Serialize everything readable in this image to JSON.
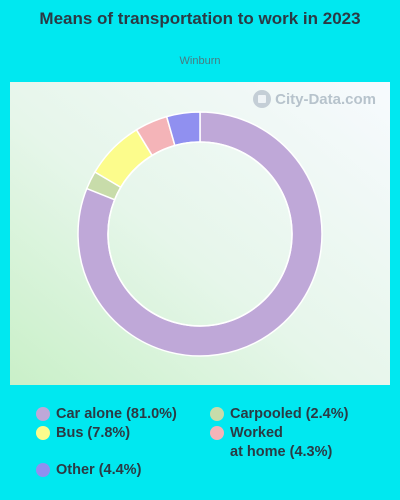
{
  "chart_data": {
    "type": "pie",
    "title": "Means of transportation to work in 2023",
    "subtitle": "Winburn",
    "watermark": "City-Data.com",
    "donut": true,
    "slices": [
      {
        "name": "Car alone",
        "value": 81.0,
        "label": "Car alone (81.0%)",
        "color": "#bfa8d8"
      },
      {
        "name": "Carpooled",
        "value": 2.4,
        "label": "Carpooled (2.4%)",
        "color": "#c8dcaa"
      },
      {
        "name": "Bus",
        "value": 7.8,
        "label": "Bus (7.8%)",
        "color": "#fcfc8c"
      },
      {
        "name": "Worked at home",
        "value": 4.3,
        "label": "Worked\nat home (4.3%)",
        "color": "#f4b4b8"
      },
      {
        "name": "Other",
        "value": 4.4,
        "label": "Other (4.4%)",
        "color": "#9090f0"
      }
    ],
    "legend_placement": "bottom"
  }
}
